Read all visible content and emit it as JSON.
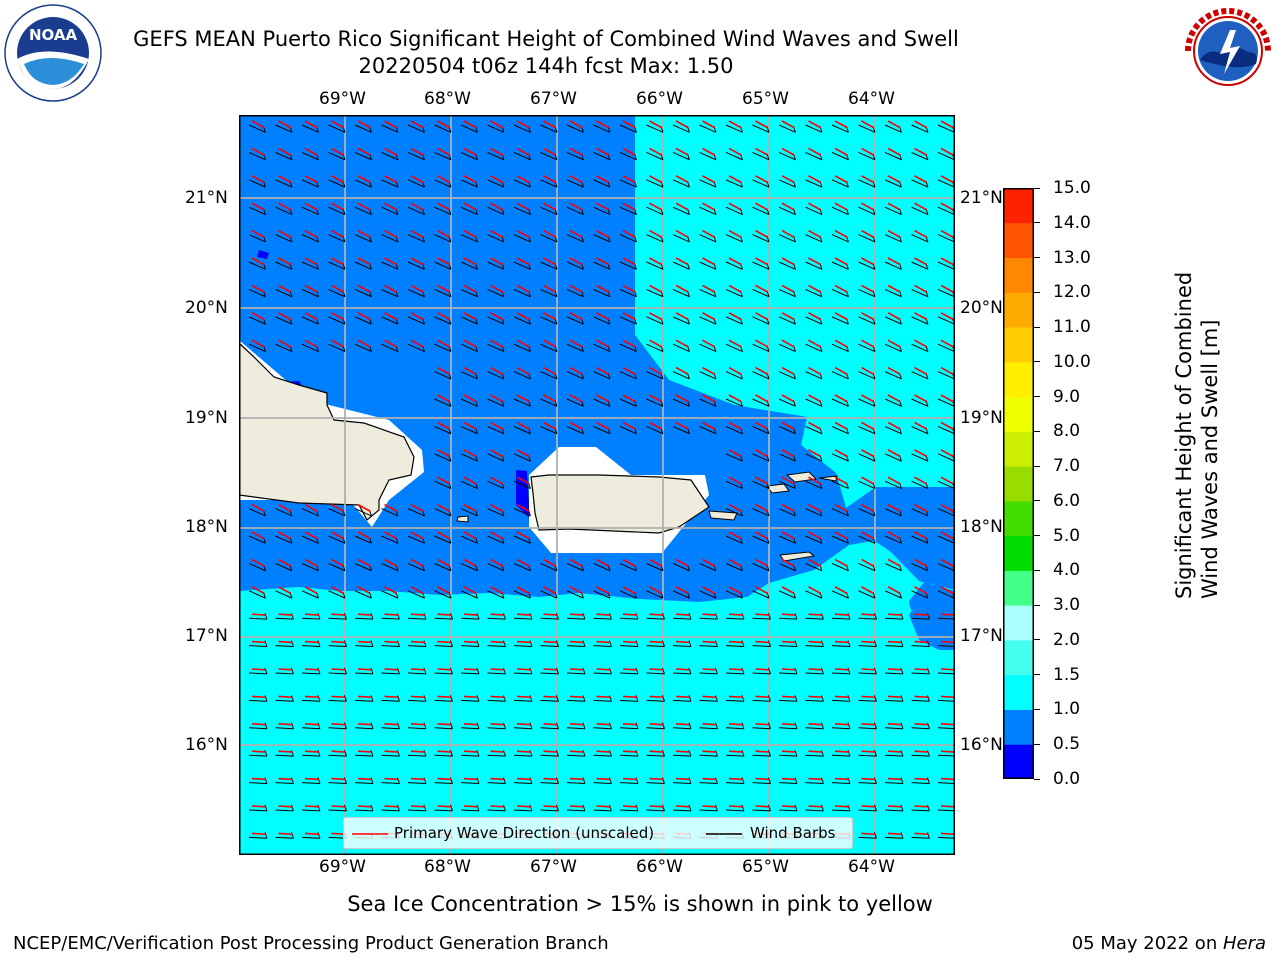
{
  "header": {
    "title_line1": "GEFS MEAN Puerto Rico Significant Height of Combined Wind Waves and Swell",
    "title_line2": "20220504 t06z 144h fcst   Max: 1.50"
  },
  "logos": {
    "left": {
      "name": "NOAA",
      "ring_text": "NATIONAL OCEANIC AND ATMOSPHERIC ADMINISTRATION · U.S. DEPARTMENT OF COMMERCE"
    },
    "right": {
      "name": "NATIONAL WEATHER SERVICE"
    }
  },
  "map": {
    "lon_labels": [
      "69°W",
      "68°W",
      "67°W",
      "66°W",
      "65°W",
      "64°W"
    ],
    "lat_labels": [
      "21°N",
      "20°N",
      "19°N",
      "18°N",
      "17°N",
      "16°N"
    ],
    "legend": {
      "wave_direction": "Primary Wave Direction (unscaled)",
      "wind_barbs": "Wind Barbs"
    },
    "colors": {
      "band_0_5_to_1_0": "#0080ff",
      "band_1_0_to_1_5": "#00ffff",
      "band_0_0_to_0_5": "#0000ff",
      "land": "#eeecdc",
      "wave_arrow": "#ff0000",
      "wind_barb": "#000000"
    }
  },
  "colorbar": {
    "label_line1": "Significant Height of Combined",
    "label_line2": "Wind Waves and Swell [m]",
    "ticks": [
      "0.0",
      "0.5",
      "1.0",
      "1.5",
      "2.0",
      "3.0",
      "4.0",
      "5.0",
      "6.0",
      "7.0",
      "8.0",
      "9.0",
      "10.0",
      "11.0",
      "12.0",
      "13.0",
      "14.0",
      "15.0"
    ],
    "colors": [
      "#0000ff",
      "#0080ff",
      "#00ffff",
      "#44ffee",
      "#aaffff",
      "#44ff88",
      "#00dd00",
      "#44dd00",
      "#99dd00",
      "#ccee00",
      "#eeff00",
      "#ffee00",
      "#ffcc00",
      "#ffaa00",
      "#ff8800",
      "#ff5500",
      "#ff2200"
    ]
  },
  "notes": {
    "sea_ice": "Sea Ice Concentration > 15% is shown in pink to yellow"
  },
  "footer": {
    "left": "NCEP/EMC/Verification Post Processing Product Generation Branch",
    "right_prefix": "05 May 2022 on ",
    "right_machine": "Hera"
  }
}
